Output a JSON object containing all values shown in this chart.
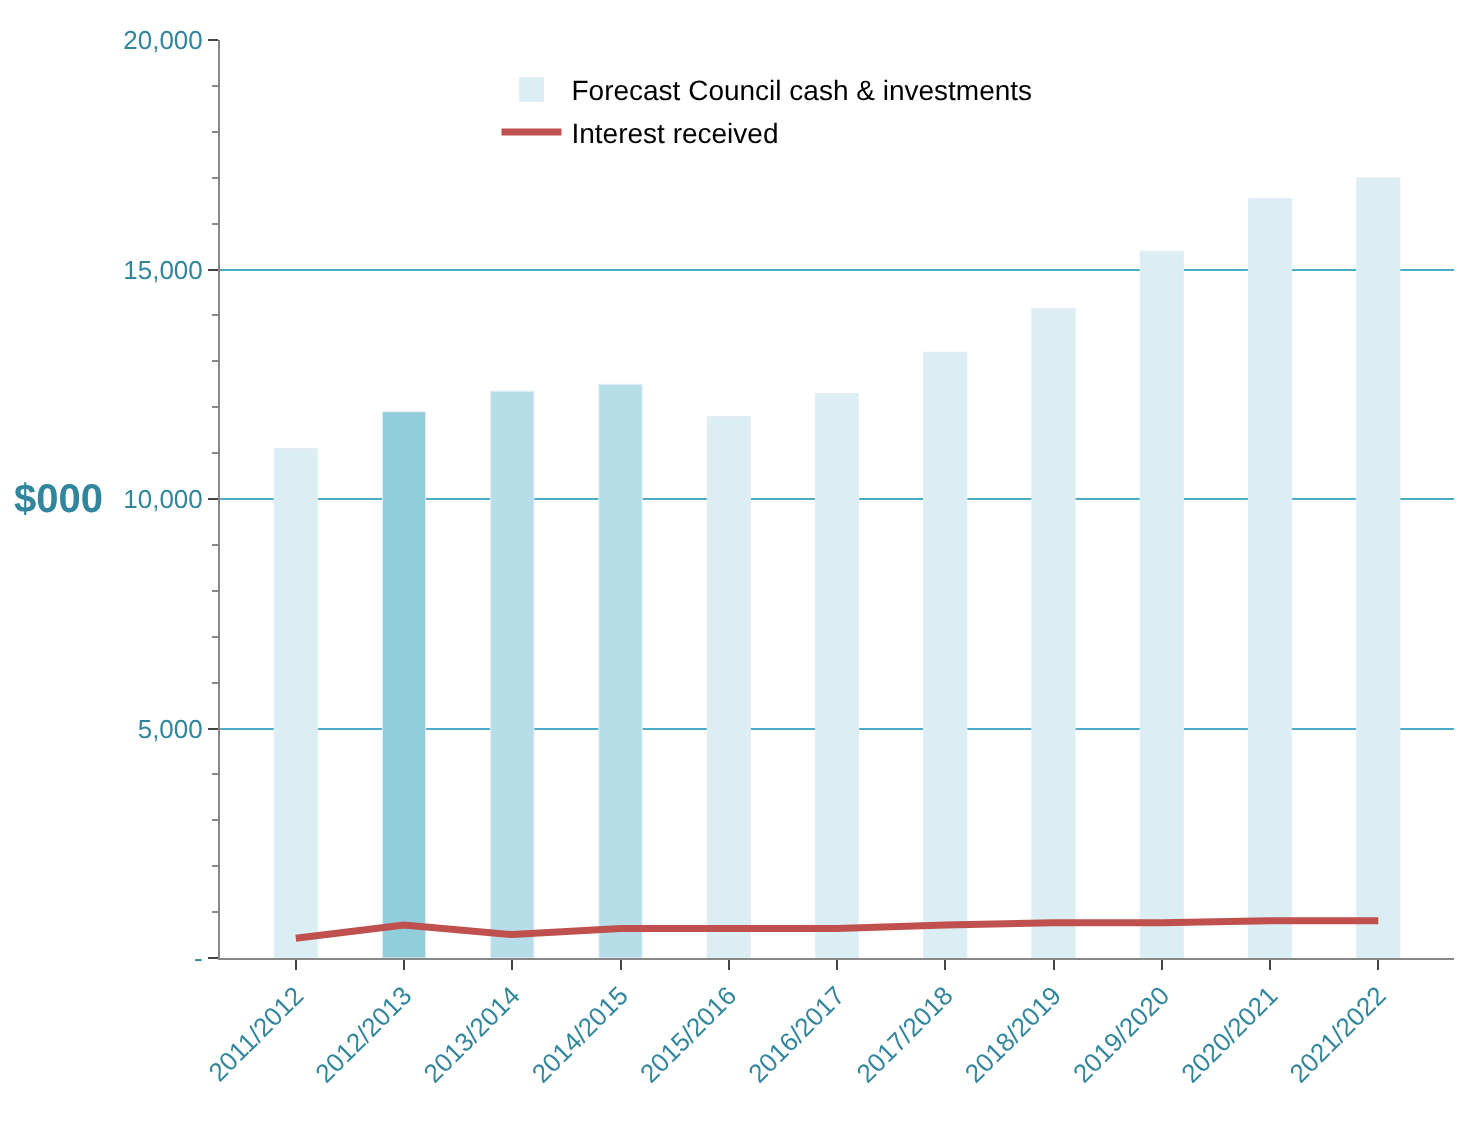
{
  "chart_data": {
    "type": "bar",
    "ylabel": "$000",
    "categories": [
      "2011/2012",
      "2012/2013",
      "2013/2014",
      "2014/2015",
      "2015/2016",
      "2016/2017",
      "2017/2018",
      "2018/2019",
      "2019/2020",
      "2020/2021",
      "2021/2022"
    ],
    "series": [
      {
        "name": "Forecast Council cash & investments",
        "colors": [
          "#daeef3",
          "#92cddc",
          "#b7dee8",
          "#b7dee8",
          "#daeef3",
          "#daeef3",
          "#daeef3",
          "#daeef3",
          "#daeef3",
          "#daeef3",
          "#daeef3"
        ],
        "values": [
          11100,
          11900,
          12350,
          12500,
          11800,
          12300,
          13200,
          14150,
          15400,
          16550,
          17000
        ]
      },
      {
        "name": "Interest received",
        "type": "line",
        "color": "#c0504d",
        "values": [
          430,
          720,
          510,
          640,
          640,
          640,
          720,
          770,
          770,
          810,
          810
        ]
      }
    ],
    "ylim": [
      0,
      20000
    ],
    "yticks": [
      {
        "value": 0,
        "label": "-"
      },
      {
        "value": 5000,
        "label": "5,000"
      },
      {
        "value": 10000,
        "label": "10,000"
      },
      {
        "value": 15000,
        "label": "15,000"
      },
      {
        "value": 20000,
        "label": "20,000"
      }
    ],
    "grid": "y",
    "legend": "top",
    "marker": "none",
    "line_style": "solid"
  }
}
